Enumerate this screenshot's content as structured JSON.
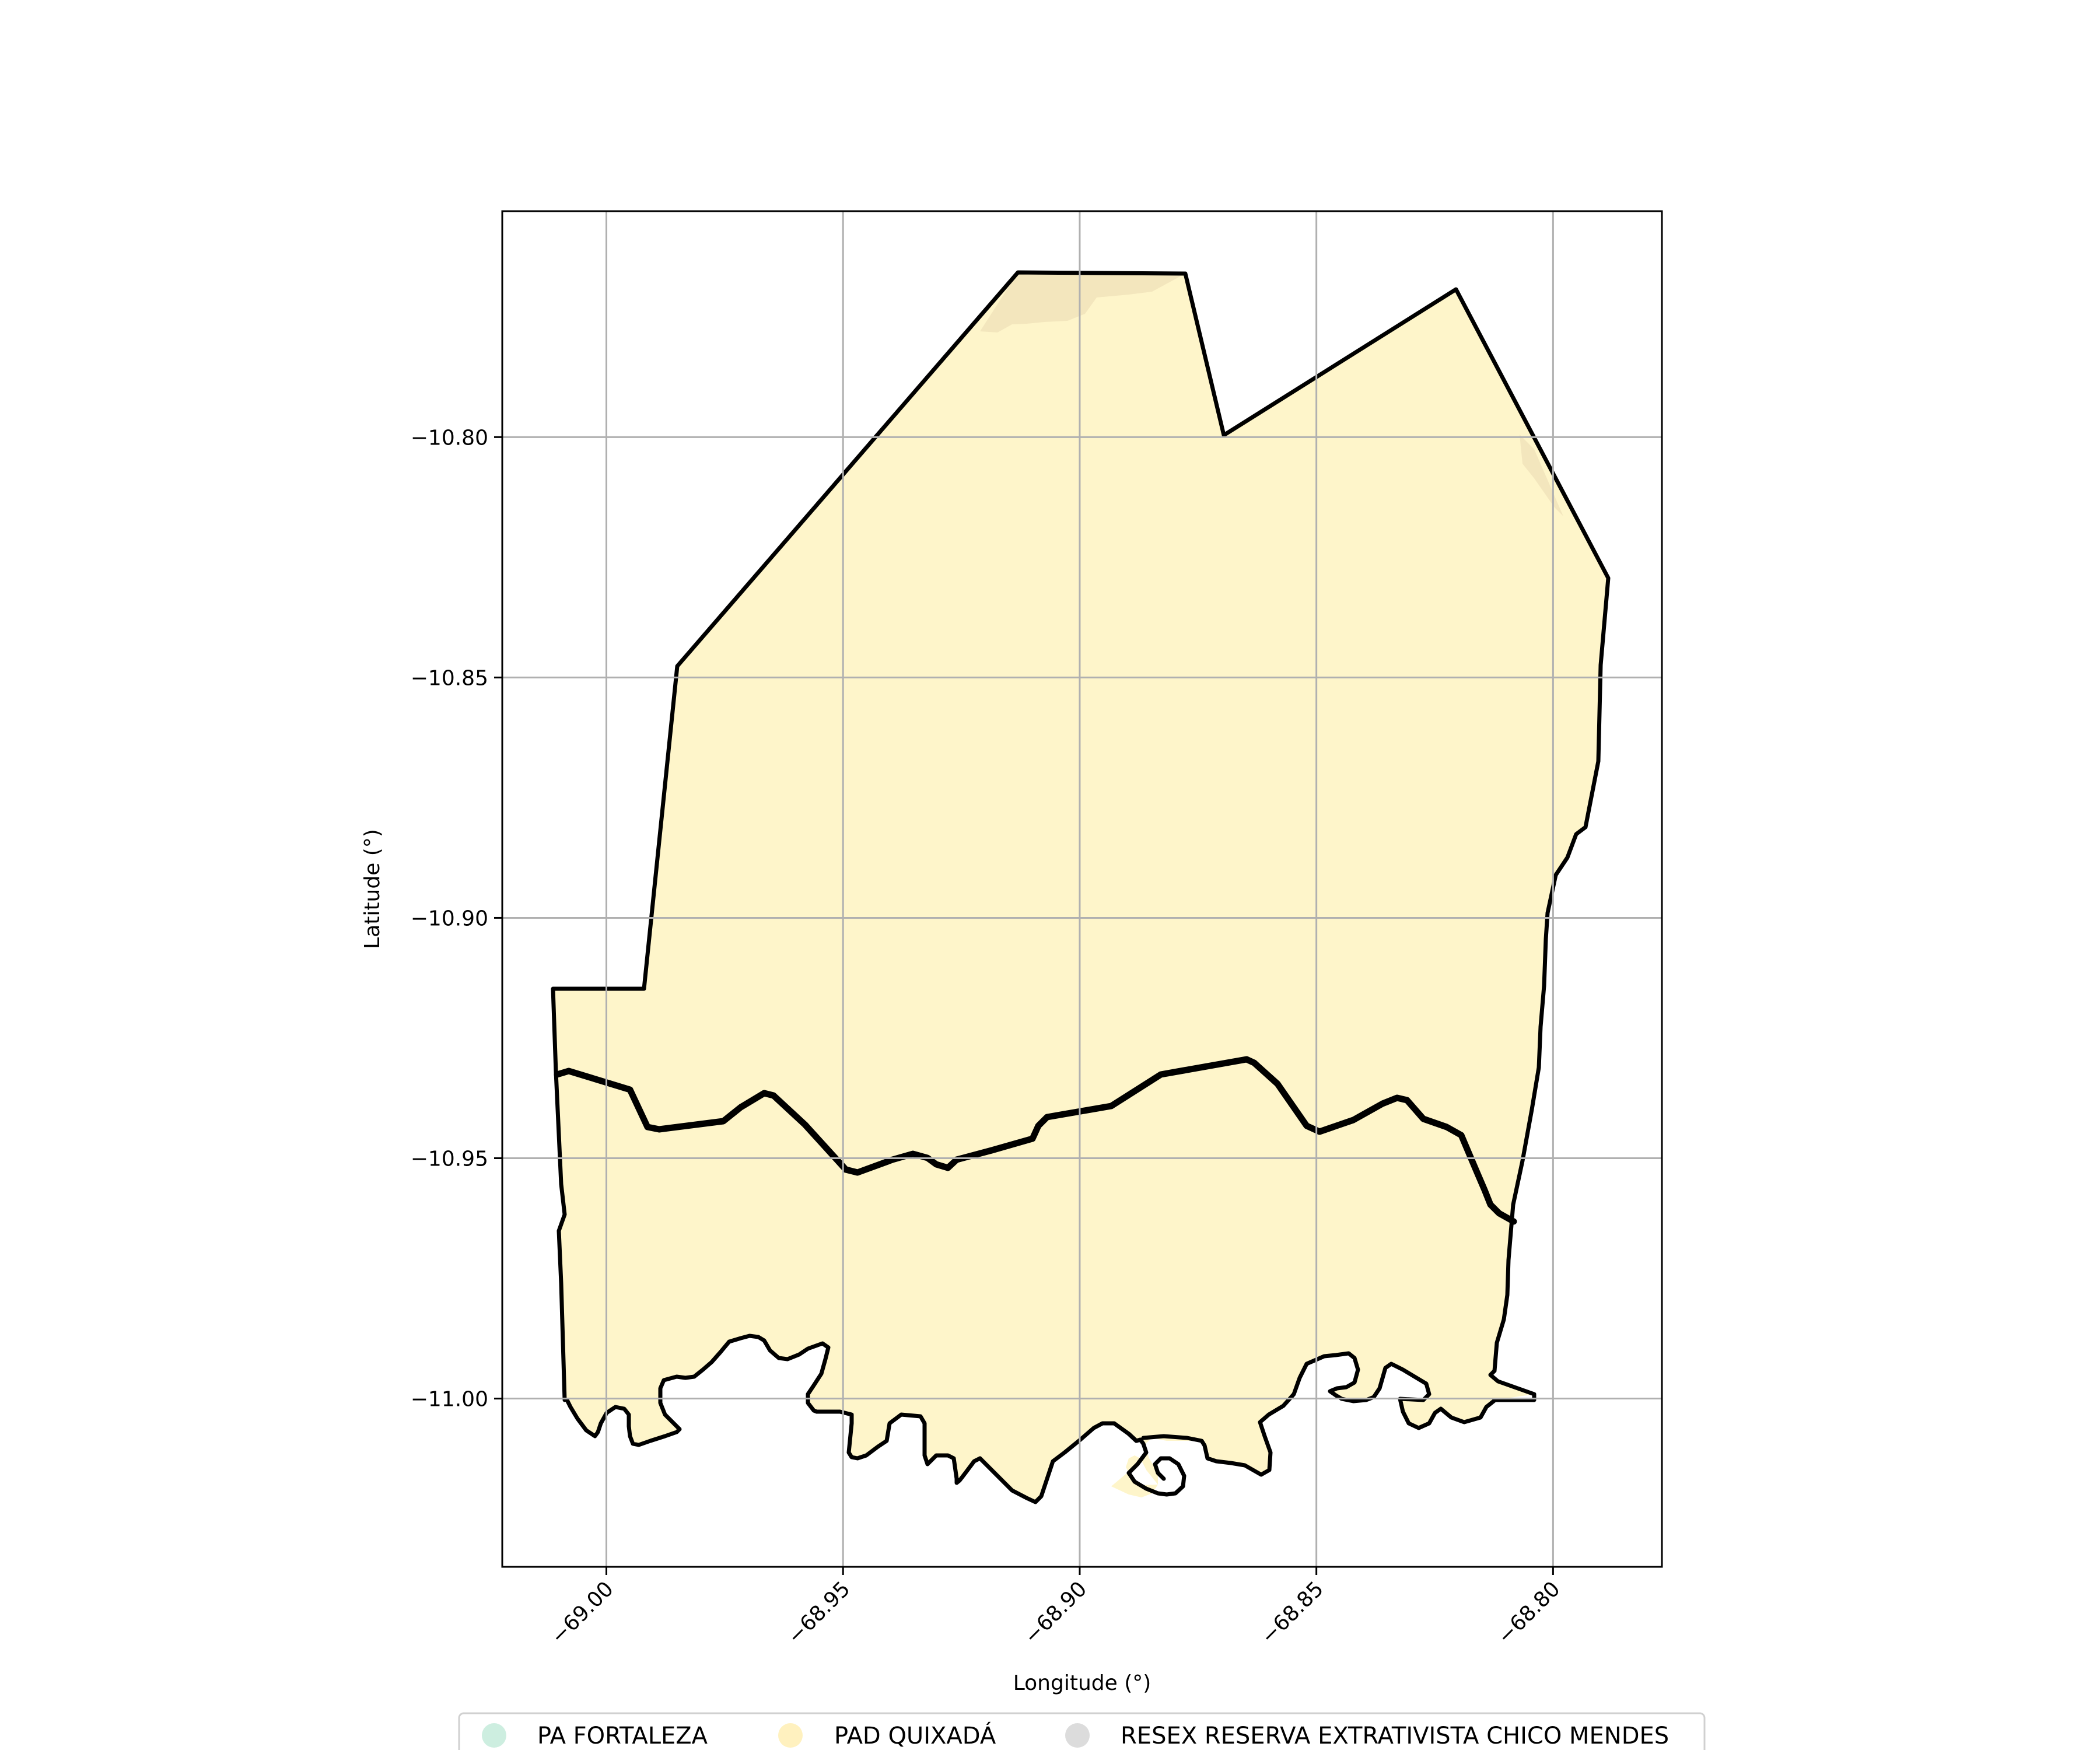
{
  "map": {
    "xlabel": "Longitude (°)",
    "ylabel": "Latitude (°)",
    "x_ticks": [
      {
        "value": -69.0,
        "label": "−69.00"
      },
      {
        "value": -68.95,
        "label": "−68.95"
      },
      {
        "value": -68.9,
        "label": "−68.90"
      },
      {
        "value": -68.85,
        "label": "−68.85"
      },
      {
        "value": -68.8,
        "label": "−68.80"
      }
    ],
    "y_ticks": [
      {
        "value": -10.8,
        "label": "−10.80"
      },
      {
        "value": -10.85,
        "label": "−10.85"
      },
      {
        "value": -10.9,
        "label": "−10.90"
      },
      {
        "value": -10.95,
        "label": "−10.95"
      },
      {
        "value": -11.0,
        "label": "−11.00"
      }
    ],
    "xlim": [
      -69.022,
      -68.777
    ],
    "ylim": [
      -11.035,
      -10.753
    ],
    "grid": true,
    "legend": {
      "placement": "bottom-center",
      "items": [
        {
          "label": "PA FORTALEZA",
          "color": "#cdeee0"
        },
        {
          "label": "PAD QUIXADÁ",
          "color": "#fff1bf"
        },
        {
          "label": "RESEX RESERVA EXTRATIVISTA CHICO MENDES",
          "color": "#dcdcdc"
        }
      ]
    },
    "colors": {
      "area_fill": "#fef5ca",
      "boundary": "#000000",
      "grid": "#b0b0b0"
    }
  }
}
